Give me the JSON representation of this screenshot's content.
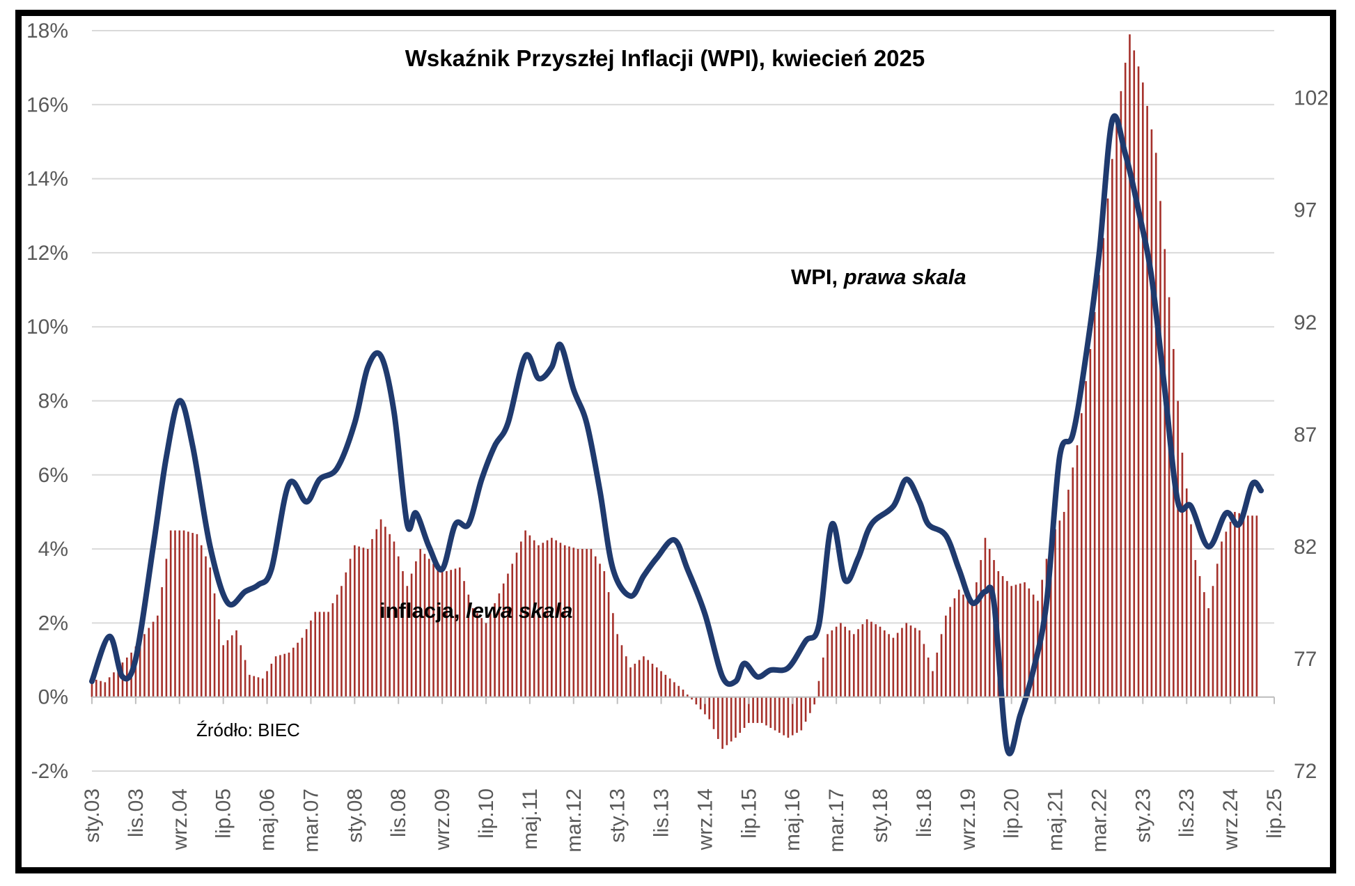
{
  "chart_data": {
    "type": "bar+line",
    "title": "Wskaźnik Przyszłej Inflacji (WPI), kwiecień 2025",
    "source": "Źródło: BIEC",
    "annotations": {
      "wpi_label": "WPI, ",
      "wpi_label_italic": "prawa skala",
      "inflation_label": "inflacja, ",
      "inflation_label_italic": "lewa skala"
    },
    "x_tick_labels": [
      "sty.03",
      "lis.03",
      "wrz.04",
      "lip.05",
      "maj.06",
      "mar.07",
      "sty.08",
      "lis.08",
      "wrz.09",
      "lip.10",
      "maj.11",
      "mar.12",
      "sty.13",
      "lis.13",
      "wrz.14",
      "lip.15",
      "maj.16",
      "mar.17",
      "sty.18",
      "lis.18",
      "wrz.19",
      "lip.20",
      "maj.21",
      "mar.22",
      "sty.23",
      "lis.23",
      "wrz.24",
      "lip.25"
    ],
    "left_axis": {
      "ticks": [
        "-2%",
        "0%",
        "2%",
        "4%",
        "6%",
        "8%",
        "10%",
        "12%",
        "14%",
        "16%",
        "18%"
      ],
      "ylim": [
        -2,
        18
      ]
    },
    "right_axis": {
      "ticks": [
        "72",
        "77",
        "82",
        "87",
        "92",
        "97",
        "102"
      ],
      "ylim": [
        72,
        105
      ]
    },
    "grid": "horizontal",
    "x_range": [
      "2003-01",
      "2025-07"
    ],
    "colors": {
      "inflation_bars": "#a5302a",
      "wpi_line": "#1f3a6e",
      "grid": "#d9d9d9"
    },
    "series": [
      {
        "name": "inflacja",
        "kind": "bar",
        "axis": "left",
        "unit": "%",
        "points": [
          [
            "2003-01",
            0.5
          ],
          [
            "2003-04",
            0.4
          ],
          [
            "2003-07",
            0.8
          ],
          [
            "2003-10",
            1.2
          ],
          [
            "2004-01",
            1.7
          ],
          [
            "2004-04",
            2.2
          ],
          [
            "2004-07",
            4.5
          ],
          [
            "2004-10",
            4.5
          ],
          [
            "2005-01",
            4.4
          ],
          [
            "2005-04",
            3.5
          ],
          [
            "2005-07",
            1.4
          ],
          [
            "2005-10",
            1.8
          ],
          [
            "2006-01",
            0.6
          ],
          [
            "2006-04",
            0.5
          ],
          [
            "2006-07",
            1.1
          ],
          [
            "2006-10",
            1.2
          ],
          [
            "2007-01",
            1.6
          ],
          [
            "2007-04",
            2.3
          ],
          [
            "2007-07",
            2.3
          ],
          [
            "2007-10",
            3.0
          ],
          [
            "2008-01",
            4.1
          ],
          [
            "2008-04",
            4.0
          ],
          [
            "2008-07",
            4.8
          ],
          [
            "2008-10",
            4.2
          ],
          [
            "2009-01",
            3.0
          ],
          [
            "2009-04",
            4.0
          ],
          [
            "2009-07",
            3.6
          ],
          [
            "2009-10",
            3.4
          ],
          [
            "2010-01",
            3.5
          ],
          [
            "2010-04",
            2.4
          ],
          [
            "2010-07",
            2.0
          ],
          [
            "2010-10",
            2.8
          ],
          [
            "2011-01",
            3.6
          ],
          [
            "2011-04",
            4.5
          ],
          [
            "2011-07",
            4.1
          ],
          [
            "2011-10",
            4.3
          ],
          [
            "2012-01",
            4.1
          ],
          [
            "2012-04",
            4.0
          ],
          [
            "2012-07",
            4.0
          ],
          [
            "2012-10",
            3.4
          ],
          [
            "2013-01",
            1.7
          ],
          [
            "2013-04",
            0.8
          ],
          [
            "2013-07",
            1.1
          ],
          [
            "2013-10",
            0.8
          ],
          [
            "2014-01",
            0.5
          ],
          [
            "2014-04",
            0.2
          ],
          [
            "2014-07",
            -0.2
          ],
          [
            "2014-10",
            -0.6
          ],
          [
            "2015-01",
            -1.4
          ],
          [
            "2015-04",
            -1.1
          ],
          [
            "2015-07",
            -0.7
          ],
          [
            "2015-10",
            -0.7
          ],
          [
            "2016-01",
            -0.9
          ],
          [
            "2016-04",
            -1.1
          ],
          [
            "2016-07",
            -0.9
          ],
          [
            "2016-10",
            -0.2
          ],
          [
            "2017-01",
            1.7
          ],
          [
            "2017-04",
            2.0
          ],
          [
            "2017-07",
            1.7
          ],
          [
            "2017-10",
            2.1
          ],
          [
            "2018-01",
            1.9
          ],
          [
            "2018-04",
            1.6
          ],
          [
            "2018-07",
            2.0
          ],
          [
            "2018-10",
            1.8
          ],
          [
            "2019-01",
            0.7
          ],
          [
            "2019-04",
            2.2
          ],
          [
            "2019-07",
            2.9
          ],
          [
            "2019-10",
            2.5
          ],
          [
            "2020-01",
            4.3
          ],
          [
            "2020-04",
            3.4
          ],
          [
            "2020-07",
            3.0
          ],
          [
            "2020-10",
            3.1
          ],
          [
            "2021-01",
            2.6
          ],
          [
            "2021-04",
            4.3
          ],
          [
            "2021-07",
            5.0
          ],
          [
            "2021-10",
            6.8
          ],
          [
            "2022-01",
            9.4
          ],
          [
            "2022-04",
            12.4
          ],
          [
            "2022-07",
            15.6
          ],
          [
            "2022-10",
            17.9
          ],
          [
            "2023-01",
            16.6
          ],
          [
            "2023-04",
            14.7
          ],
          [
            "2023-07",
            10.8
          ],
          [
            "2023-10",
            6.6
          ],
          [
            "2024-01",
            3.7
          ],
          [
            "2024-04",
            2.4
          ],
          [
            "2024-07",
            4.2
          ],
          [
            "2024-10",
            5.0
          ],
          [
            "2025-01",
            4.9
          ],
          [
            "2025-03",
            4.9
          ]
        ]
      },
      {
        "name": "WPI",
        "kind": "line",
        "axis": "right",
        "points": [
          [
            "2003-01",
            76
          ],
          [
            "2003-05",
            78
          ],
          [
            "2003-08",
            76.2
          ],
          [
            "2003-11",
            77
          ],
          [
            "2004-03",
            82
          ],
          [
            "2004-06",
            86
          ],
          [
            "2004-09",
            88.5
          ],
          [
            "2004-12",
            86.5
          ],
          [
            "2005-04",
            82
          ],
          [
            "2005-08",
            79.5
          ],
          [
            "2005-12",
            80
          ],
          [
            "2006-03",
            80.3
          ],
          [
            "2006-06",
            81
          ],
          [
            "2006-10",
            84.8
          ],
          [
            "2007-02",
            84
          ],
          [
            "2007-05",
            85
          ],
          [
            "2007-09",
            85.5
          ],
          [
            "2008-01",
            87.5
          ],
          [
            "2008-04",
            90
          ],
          [
            "2008-07",
            90.5
          ],
          [
            "2008-10",
            88
          ],
          [
            "2009-01",
            83
          ],
          [
            "2009-03",
            83.5
          ],
          [
            "2009-06",
            82
          ],
          [
            "2009-09",
            81
          ],
          [
            "2009-12",
            83
          ],
          [
            "2010-03",
            83
          ],
          [
            "2010-06",
            85
          ],
          [
            "2010-09",
            86.5
          ],
          [
            "2010-12",
            87.5
          ],
          [
            "2011-04",
            90.5
          ],
          [
            "2011-07",
            89.5
          ],
          [
            "2011-10",
            90
          ],
          [
            "2011-12",
            91
          ],
          [
            "2012-03",
            89
          ],
          [
            "2012-06",
            87.5
          ],
          [
            "2012-09",
            84.5
          ],
          [
            "2012-12",
            81
          ],
          [
            "2013-04",
            79.8
          ],
          [
            "2013-07",
            80.7
          ],
          [
            "2013-10",
            81.5
          ],
          [
            "2014-02",
            82.3
          ],
          [
            "2014-05",
            81
          ],
          [
            "2014-09",
            79
          ],
          [
            "2015-01",
            76.2
          ],
          [
            "2015-04",
            76
          ],
          [
            "2015-06",
            76.8
          ],
          [
            "2015-09",
            76.2
          ],
          [
            "2015-12",
            76.5
          ],
          [
            "2016-04",
            76.6
          ],
          [
            "2016-08",
            77.8
          ],
          [
            "2016-11",
            78.5
          ],
          [
            "2017-02",
            83
          ],
          [
            "2017-05",
            80.5
          ],
          [
            "2017-08",
            81.5
          ],
          [
            "2017-11",
            83
          ],
          [
            "2018-04",
            83.8
          ],
          [
            "2018-07",
            85
          ],
          [
            "2018-10",
            84
          ],
          [
            "2018-12",
            83
          ],
          [
            "2019-04",
            82.5
          ],
          [
            "2019-07",
            81
          ],
          [
            "2019-10",
            79.5
          ],
          [
            "2020-01",
            80
          ],
          [
            "2020-03",
            79.5
          ],
          [
            "2020-06",
            73
          ],
          [
            "2020-09",
            74.5
          ],
          [
            "2020-12",
            76.5
          ],
          [
            "2021-03",
            79.5
          ],
          [
            "2021-06",
            86
          ],
          [
            "2021-09",
            87
          ],
          [
            "2021-12",
            90.5
          ],
          [
            "2022-03",
            95
          ],
          [
            "2022-06",
            101
          ],
          [
            "2022-09",
            99.5
          ],
          [
            "2022-12",
            97
          ],
          [
            "2023-03",
            94
          ],
          [
            "2023-06",
            89
          ],
          [
            "2023-09",
            84
          ],
          [
            "2023-12",
            83.8
          ],
          [
            "2024-04",
            82
          ],
          [
            "2024-08",
            83.5
          ],
          [
            "2024-11",
            83
          ],
          [
            "2025-02",
            84.8
          ],
          [
            "2025-04",
            84.5
          ]
        ]
      }
    ]
  }
}
